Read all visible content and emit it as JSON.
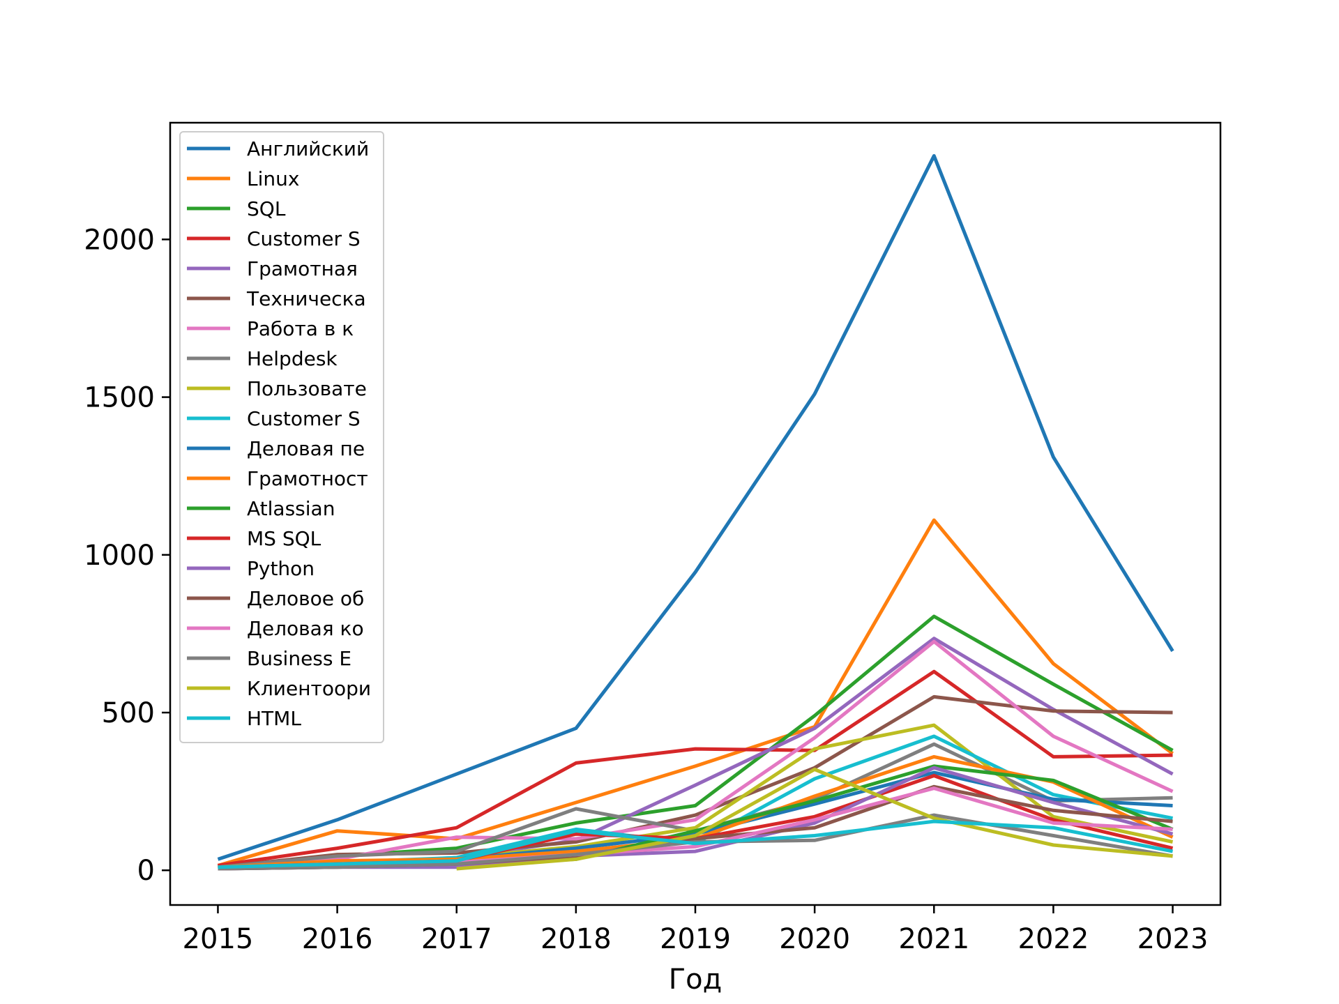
{
  "chart_data": {
    "type": "line",
    "title": "",
    "xlabel": "Год",
    "ylabel": "",
    "x": [
      2015,
      2016,
      2017,
      2018,
      2019,
      2020,
      2021,
      2022,
      2023
    ],
    "xlim": [
      2014.6,
      2023.4
    ],
    "ylim": [
      -110,
      2370
    ],
    "yticks": [
      0,
      500,
      1000,
      1500,
      2000
    ],
    "grid": false,
    "legend_position": "upper-left",
    "series": [
      {
        "name": "Английский",
        "color": "#1f77b4",
        "values": [
          35,
          160,
          305,
          450,
          945,
          1510,
          2265,
          1310,
          695
        ]
      },
      {
        "name": "Linux",
        "color": "#ff7f0e",
        "values": [
          15,
          125,
          100,
          215,
          330,
          455,
          1110,
          655,
          370
        ]
      },
      {
        "name": "SQL",
        "color": "#2ca02c",
        "values": [
          10,
          45,
          70,
          150,
          205,
          490,
          805,
          590,
          380
        ]
      },
      {
        "name": "Customer S",
        "color": "#d62728",
        "values": [
          15,
          70,
          135,
          340,
          385,
          380,
          630,
          360,
          365
        ]
      },
      {
        "name": "Грамотная",
        "color": "#9467bd",
        "values": [
          5,
          20,
          40,
          95,
          270,
          450,
          735,
          510,
          305
        ]
      },
      {
        "name": "Техническа",
        "color": "#8c564b",
        "values": [
          10,
          50,
          55,
          90,
          175,
          325,
          550,
          505,
          500
        ]
      },
      {
        "name": "Работа в к",
        "color": "#e377c2",
        "values": [
          10,
          35,
          105,
          100,
          160,
          420,
          725,
          425,
          250
        ]
      },
      {
        "name": "Helpdesk",
        "color": "#7f7f7f",
        "values": [
          10,
          45,
          60,
          195,
          125,
          225,
          400,
          220,
          230
        ]
      },
      {
        "name": "Пользовате",
        "color": "#bcbd22",
        "values": [
          5,
          15,
          40,
          75,
          135,
          385,
          460,
          170,
          90
        ]
      },
      {
        "name": "Customer S",
        "color": "#17becf",
        "values": [
          10,
          25,
          40,
          130,
          85,
          290,
          425,
          240,
          165
        ]
      },
      {
        "name": "Деловая пе",
        "color": "#1f77b4",
        "values": [
          5,
          20,
          35,
          70,
          115,
          210,
          310,
          225,
          205
        ]
      },
      {
        "name": "Грамотност",
        "color": "#ff7f0e",
        "values": [
          10,
          30,
          35,
          60,
          100,
          235,
          360,
          280,
          105
        ]
      },
      {
        "name": "Atlassian",
        "color": "#2ca02c",
        "values": [
          5,
          20,
          15,
          35,
          125,
          220,
          330,
          285,
          130
        ]
      },
      {
        "name": "MS SQL",
        "color": "#d62728",
        "values": [
          10,
          20,
          30,
          115,
          100,
          170,
          300,
          160,
          70
        ]
      },
      {
        "name": "Python",
        "color": "#9467bd",
        "values": [
          5,
          10,
          10,
          45,
          60,
          150,
          325,
          215,
          115
        ]
      },
      {
        "name": "Деловое об",
        "color": "#8c564b",
        "values": [
          5,
          10,
          20,
          45,
          100,
          135,
          265,
          190,
          155
        ]
      },
      {
        "name": "Деловая ко",
        "color": "#e377c2",
        "values": [
          5,
          15,
          25,
          50,
          75,
          160,
          260,
          150,
          130
        ]
      },
      {
        "name": "Business E",
        "color": "#7f7f7f",
        "values": [
          5,
          10,
          20,
          50,
          90,
          95,
          175,
          110,
          45
        ]
      },
      {
        "name": "Клиентоори",
        "color": "#bcbd22",
        "values": [
          null,
          null,
          5,
          35,
          110,
          320,
          165,
          80,
          45
        ]
      },
      {
        "name": "HTML",
        "color": "#17becf",
        "values": [
          10,
          20,
          30,
          125,
          85,
          110,
          155,
          135,
          60
        ]
      }
    ]
  }
}
